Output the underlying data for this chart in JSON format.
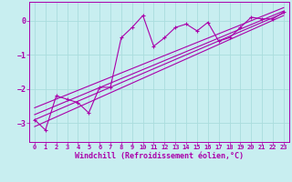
{
  "xlabel": "Windchill (Refroidissement éolien,°C)",
  "bg_color": "#c8eef0",
  "grid_color": "#aadddd",
  "line_color": "#aa00aa",
  "xlim": [
    -0.5,
    23.5
  ],
  "ylim": [
    -3.55,
    0.55
  ],
  "yticks": [
    0,
    -1,
    -2,
    -3
  ],
  "xticks": [
    0,
    1,
    2,
    3,
    4,
    5,
    6,
    7,
    8,
    9,
    10,
    11,
    12,
    13,
    14,
    15,
    16,
    17,
    18,
    19,
    20,
    21,
    22,
    23
  ],
  "main_x": [
    0,
    1,
    2,
    3,
    4,
    5,
    6,
    7,
    8,
    9,
    10,
    11,
    12,
    13,
    14,
    15,
    16,
    17,
    18,
    19,
    20,
    21,
    22,
    23
  ],
  "main_y": [
    -2.9,
    -3.2,
    -2.2,
    -2.3,
    -2.4,
    -2.7,
    -1.95,
    -1.95,
    -0.5,
    -0.2,
    0.15,
    -0.75,
    -0.5,
    -0.2,
    -0.1,
    -0.3,
    -0.05,
    -0.6,
    -0.5,
    -0.2,
    0.1,
    0.05,
    0.05,
    0.25
  ],
  "reg_lines": [
    {
      "x": [
        0,
        23
      ],
      "y": [
        -3.1,
        0.15
      ]
    },
    {
      "x": [
        0,
        23
      ],
      "y": [
        -2.9,
        0.22
      ]
    },
    {
      "x": [
        0,
        23
      ],
      "y": [
        -2.75,
        0.28
      ]
    },
    {
      "x": [
        0,
        23
      ],
      "y": [
        -2.55,
        0.38
      ]
    }
  ],
  "tick_fontsize": 5,
  "xlabel_fontsize": 6,
  "line_width": 0.8,
  "marker_size": 3
}
